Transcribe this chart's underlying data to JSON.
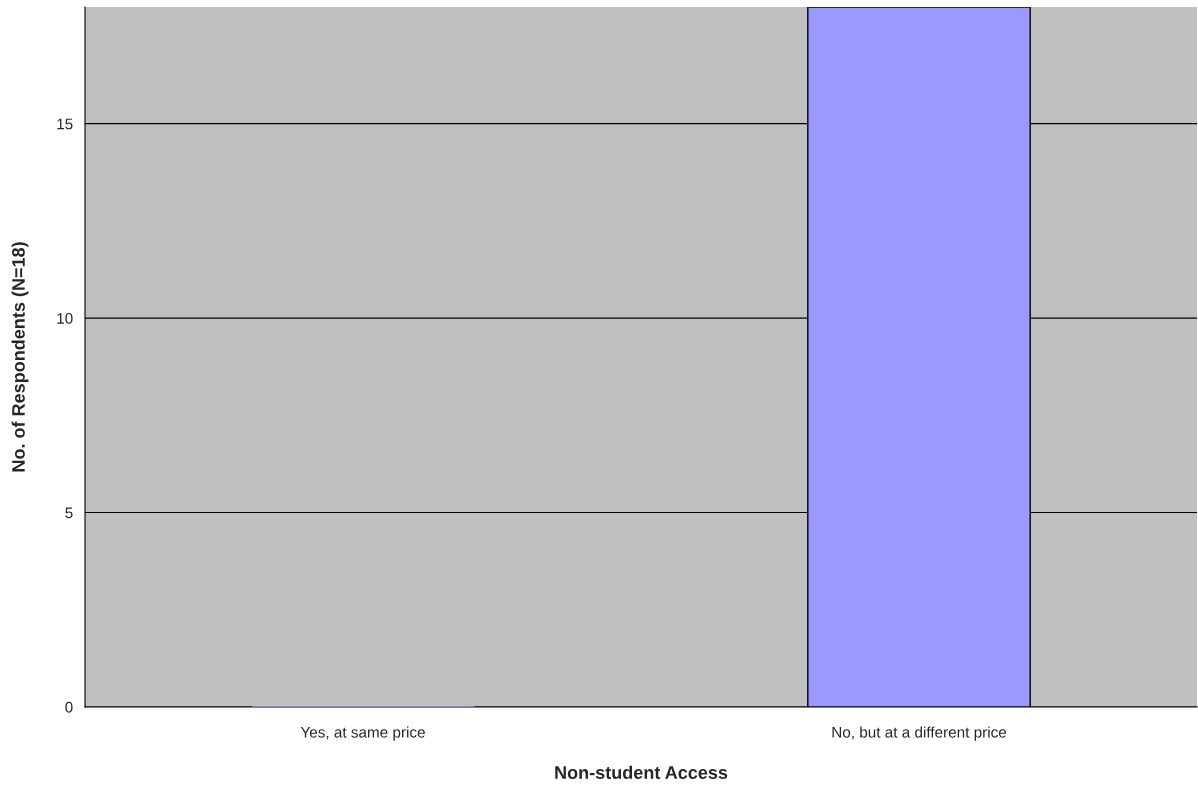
{
  "chart_data": {
    "type": "bar",
    "xlabel": "Non-student Access",
    "ylabel": "No. of Respondents (N=18)",
    "categories": [
      "Yes, at same price",
      "No, but at a different price"
    ],
    "series": [
      {
        "color": "#9999ff",
        "values": [
          0,
          18
        ]
      }
    ],
    "ylim": [
      0,
      18
    ],
    "yticks": [
      0,
      5,
      10,
      15
    ],
    "grid": "y",
    "legend": false
  }
}
